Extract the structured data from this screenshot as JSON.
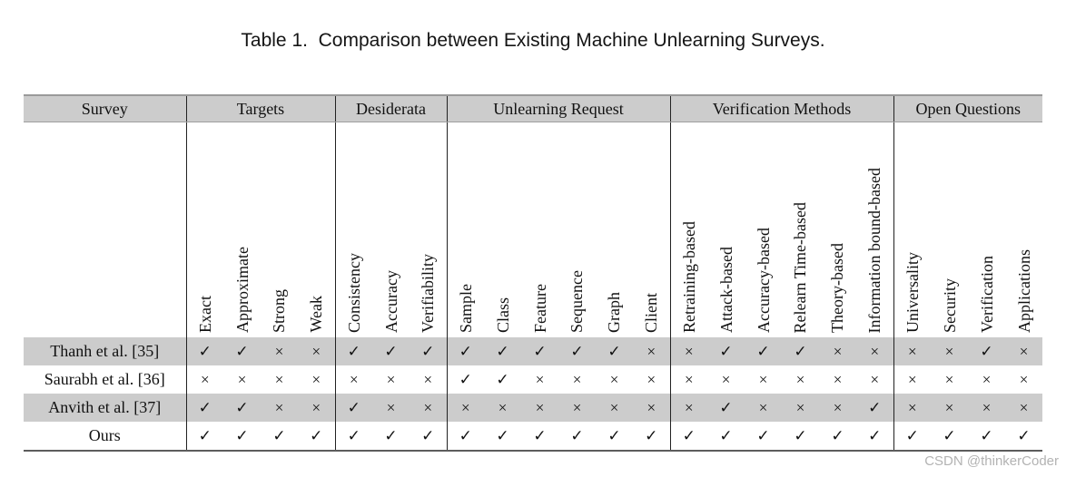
{
  "title": "Table 1.  Comparison between Existing Machine Unlearning Surveys.",
  "watermark": "CSDN @thinkerCoder",
  "colors": {
    "stripe_gray": "#cccccc",
    "group_border": "#222222",
    "watermark_gray": "#b3b3b3"
  },
  "marks_legend": {
    "check": "✓",
    "cross": "×"
  },
  "table": {
    "survey_header": "Survey",
    "groups": [
      {
        "label": "Targets",
        "columns": [
          "Exact",
          "Approximate",
          "Strong",
          "Weak"
        ]
      },
      {
        "label": "Desiderata",
        "columns": [
          "Consistency",
          "Accuracy",
          "Verifiability"
        ]
      },
      {
        "label": "Unlearning Request",
        "columns": [
          "Sample",
          "Class",
          "Feature",
          "Sequence",
          "Graph",
          "Client"
        ]
      },
      {
        "label": "Verification Methods",
        "columns": [
          "Retraining-based",
          "Attack-based",
          "Accuracy-based",
          "Relearn Time-based",
          "Theory-based",
          "Information bound-based"
        ]
      },
      {
        "label": "Open Questions",
        "columns": [
          "Universality",
          "Security",
          "Verification",
          "Applications"
        ]
      }
    ],
    "rows": [
      {
        "survey": "Thanh et al. [35]",
        "marks": [
          "✓",
          "✓",
          "×",
          "×",
          "✓",
          "✓",
          "✓",
          "✓",
          "✓",
          "✓",
          "✓",
          "✓",
          "×",
          "×",
          "✓",
          "✓",
          "✓",
          "×",
          "×",
          "×",
          "×",
          "✓",
          "×"
        ]
      },
      {
        "survey": "Saurabh et al. [36]",
        "marks": [
          "×",
          "×",
          "×",
          "×",
          "×",
          "×",
          "×",
          "✓",
          "✓",
          "×",
          "×",
          "×",
          "×",
          "×",
          "×",
          "×",
          "×",
          "×",
          "×",
          "×",
          "×",
          "×",
          "×"
        ]
      },
      {
        "survey": "Anvith et al. [37]",
        "marks": [
          "✓",
          "✓",
          "×",
          "×",
          "✓",
          "×",
          "×",
          "×",
          "×",
          "×",
          "×",
          "×",
          "×",
          "×",
          "✓",
          "×",
          "×",
          "×",
          "✓",
          "×",
          "×",
          "×",
          "×"
        ]
      },
      {
        "survey": "Ours",
        "marks": [
          "✓",
          "✓",
          "✓",
          "✓",
          "✓",
          "✓",
          "✓",
          "✓",
          "✓",
          "✓",
          "✓",
          "✓",
          "✓",
          "✓",
          "✓",
          "✓",
          "✓",
          "✓",
          "✓",
          "✓",
          "✓",
          "✓",
          "✓"
        ]
      }
    ]
  }
}
